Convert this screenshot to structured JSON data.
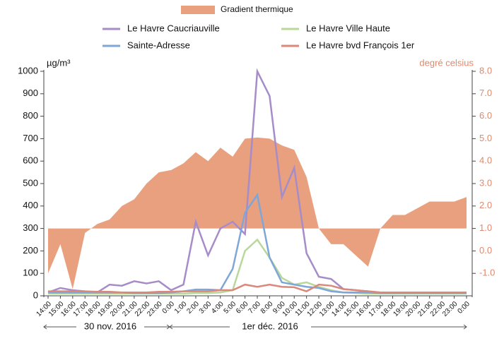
{
  "chart_data": {
    "type": "line",
    "y_label": "µg/m³",
    "y2_label": "degré celsius",
    "annotations": [
      "30 nov. 2016",
      "1er déc. 2016"
    ],
    "categories": [
      "14:00",
      "15:00",
      "16:00",
      "17:00",
      "18:00",
      "19:00",
      "20:00",
      "21:00",
      "22:00",
      "23:00",
      "0:00",
      "1:00",
      "2:00",
      "3:00",
      "4:00",
      "5:00",
      "6:00",
      "7:00",
      "8:00",
      "9:00",
      "10:00",
      "11:00",
      "12:00",
      "13:00",
      "14:00",
      "15:00",
      "16:00",
      "17:00",
      "18:00",
      "19:00",
      "20:00",
      "21:00",
      "22:00",
      "23:00",
      "0:00"
    ],
    "ylim": [
      0,
      1000
    ],
    "yticks": [
      0,
      100,
      200,
      300,
      400,
      500,
      600,
      700,
      800,
      900,
      1000
    ],
    "y2lim": [
      -2,
      8
    ],
    "y2ticks": [
      {
        "value": -1,
        "label": "-1.0"
      },
      {
        "value": 0,
        "label": "0.0"
      },
      {
        "value": 1,
        "label": "1.0"
      },
      {
        "value": 2,
        "label": "2.0"
      },
      {
        "value": 3,
        "label": "3.0"
      },
      {
        "value": 4,
        "label": "4.0"
      },
      {
        "value": 5,
        "label": "5.0"
      },
      {
        "value": 6,
        "label": "6.0"
      },
      {
        "value": 7,
        "label": "7.0"
      },
      {
        "value": 8,
        "label": "8.0"
      }
    ],
    "grid": false,
    "series": [
      {
        "name": "Gradient thermique",
        "type": "area",
        "axis": "y2",
        "baseline": 1.0,
        "color": "#e8a07e",
        "values": [
          -1.0,
          0.3,
          -1.7,
          0.8,
          1.2,
          1.4,
          2.0,
          2.3,
          3.0,
          3.5,
          3.6,
          3.9,
          4.4,
          4.0,
          4.6,
          4.2,
          5.0,
          5.05,
          5.0,
          4.7,
          4.5,
          3.3,
          1.0,
          0.3,
          0.3,
          -0.2,
          -0.7,
          1.0,
          1.6,
          1.6,
          1.9,
          2.2,
          2.2,
          2.2,
          2.4
        ]
      },
      {
        "name": "Le Havre Caucriauville",
        "color": "#a68cc8",
        "values": [
          15,
          35,
          25,
          20,
          15,
          50,
          45,
          65,
          55,
          65,
          25,
          50,
          330,
          180,
          300,
          330,
          275,
          1000,
          890,
          440,
          570,
          190,
          85,
          75,
          30,
          25,
          20,
          15,
          12,
          12,
          12,
          12,
          12,
          12,
          12
        ]
      },
      {
        "name": "Le Havre Ville Haute",
        "color": "#b8d89a",
        "values": [
          10,
          10,
          10,
          10,
          10,
          10,
          10,
          10,
          10,
          10,
          10,
          10,
          12,
          12,
          15,
          25,
          200,
          250,
          170,
          80,
          50,
          60,
          40,
          25,
          15,
          12,
          10,
          10,
          10,
          10,
          10,
          10,
          10,
          10,
          10
        ]
      },
      {
        "name": "Sainte-Adresse",
        "color": "#7ea6d8",
        "values": [
          15,
          15,
          15,
          15,
          15,
          15,
          15,
          12,
          12,
          12,
          15,
          20,
          28,
          28,
          25,
          120,
          370,
          450,
          170,
          60,
          50,
          40,
          35,
          20,
          15,
          15,
          15,
          12,
          12,
          12,
          12,
          12,
          12,
          12,
          12
        ]
      },
      {
        "name": "Le Havre bvd François 1er",
        "color": "#d9887a",
        "values": [
          20,
          20,
          20,
          20,
          18,
          18,
          15,
          15,
          15,
          18,
          18,
          20,
          20,
          20,
          25,
          25,
          50,
          40,
          50,
          40,
          38,
          20,
          50,
          45,
          30,
          25,
          20,
          15,
          15,
          15,
          15,
          15,
          15,
          15,
          15
        ]
      }
    ]
  }
}
